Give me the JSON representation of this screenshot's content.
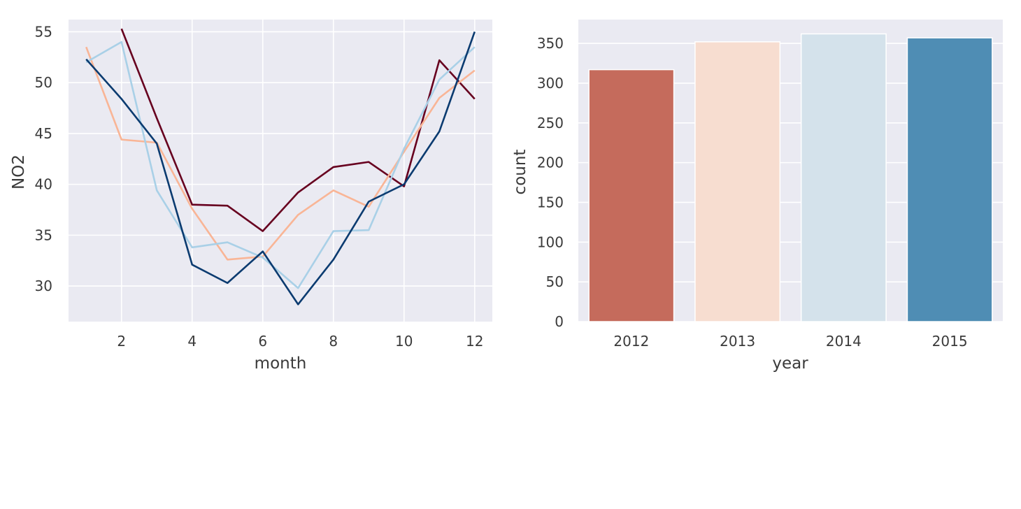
{
  "colors": {
    "plot_background": "#eaeaf2",
    "grid": "#ffffff",
    "text": "#3a3a3a"
  },
  "chart_data": [
    {
      "type": "line",
      "xlabel": "month",
      "ylabel": "NO2",
      "xlim": [
        0.5,
        12.5
      ],
      "ylim": [
        26.5,
        56.2
      ],
      "xticks": [
        2,
        4,
        6,
        8,
        10,
        12
      ],
      "yticks": [
        30,
        35,
        40,
        45,
        50,
        55
      ],
      "grid": true,
      "x": [
        1,
        2,
        3,
        4,
        5,
        6,
        7,
        8,
        9,
        10,
        11,
        12
      ],
      "series": [
        {
          "color": "#67001f",
          "values": [
            null,
            55.3,
            46.5,
            38.0,
            37.9,
            35.4,
            39.2,
            41.7,
            42.2,
            39.8,
            52.2,
            48.4
          ]
        },
        {
          "color": "#f9b596",
          "values": [
            53.5,
            44.4,
            44.1,
            37.6,
            32.6,
            32.9,
            37.0,
            39.4,
            37.8,
            43.2,
            48.5,
            51.2
          ]
        },
        {
          "color": "#a9d0e7",
          "values": [
            52.0,
            54.0,
            39.4,
            33.8,
            34.3,
            32.8,
            29.8,
            35.4,
            35.5,
            43.5,
            50.3,
            53.5
          ]
        },
        {
          "color": "#0b3b70",
          "values": [
            52.3,
            48.4,
            44.0,
            32.1,
            30.3,
            33.4,
            28.2,
            32.6,
            38.3,
            40.0,
            45.2,
            55.0
          ]
        }
      ]
    },
    {
      "type": "bar",
      "xlabel": "year",
      "ylabel": "count",
      "categories": [
        "2012",
        "2013",
        "2014",
        "2015"
      ],
      "values": [
        317,
        352,
        362,
        357
      ],
      "colors": [
        "#c56b5c",
        "#f7ddd0",
        "#d4e2eb",
        "#4f8db4"
      ],
      "ylim": [
        0,
        380
      ],
      "yticks": [
        0,
        50,
        100,
        150,
        200,
        250,
        300,
        350
      ],
      "grid": true
    }
  ]
}
